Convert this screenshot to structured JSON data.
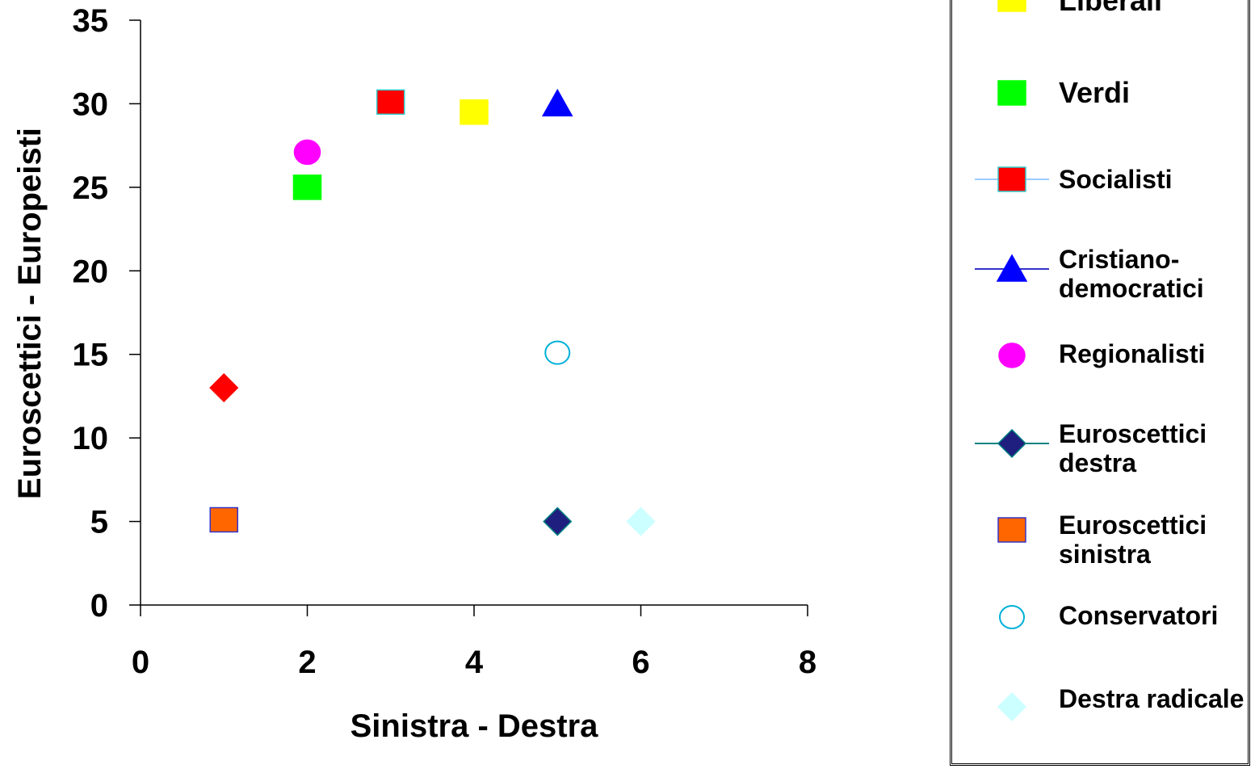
{
  "chart_data": {
    "type": "scatter",
    "title": "",
    "xlabel": "Sinistra - Destra",
    "ylabel": "Euroscettici - Europeisti",
    "xlim": [
      0,
      8
    ],
    "ylim": [
      0,
      35
    ],
    "xticks": [
      "0",
      "2",
      "4",
      "6",
      "8"
    ],
    "yticks": [
      "0",
      "5",
      "10",
      "15",
      "20",
      "25",
      "30",
      "35"
    ],
    "grid": false,
    "legend_position": "right",
    "series": [
      {
        "name": "",
        "marker": "diamond",
        "fill": "#ff0000",
        "stroke": "#ff0000",
        "points": [
          [
            1,
            13
          ]
        ]
      },
      {
        "name": "Liberali",
        "marker": "square",
        "fill": "#ffff00",
        "stroke": "#ffff00",
        "points": [
          [
            4,
            29.5
          ]
        ]
      },
      {
        "name": "Verdi",
        "marker": "square",
        "fill": "#00ff00",
        "stroke": "#00ff00",
        "points": [
          [
            2,
            25
          ]
        ]
      },
      {
        "name": "Socialisti",
        "marker": "square",
        "fill": "#ff0000",
        "stroke": "#33cccc",
        "points": [
          [
            3,
            30.1
          ]
        ]
      },
      {
        "name": "Cristiano-democratici",
        "marker": "triangle",
        "fill": "#0000ff",
        "stroke": "#0000ff",
        "points": [
          [
            5,
            30
          ]
        ]
      },
      {
        "name": "Regionalisti",
        "marker": "circle",
        "fill": "#ff00ff",
        "stroke": "#ff00ff",
        "points": [
          [
            2,
            27.1
          ]
        ]
      },
      {
        "name": "Euroscettici destra",
        "marker": "diamond",
        "fill": "#1f1f7f",
        "stroke": "#008080",
        "points": [
          [
            5,
            5
          ]
        ]
      },
      {
        "name": "Euroscettici sinistra",
        "marker": "square",
        "fill": "#ff6600",
        "stroke": "#3333cc",
        "points": [
          [
            1,
            5.1
          ]
        ]
      },
      {
        "name": "Conservatori",
        "marker": "open-circle",
        "fill": "#ffffff",
        "stroke": "#00b0d8",
        "points": [
          [
            5,
            15.1
          ]
        ]
      },
      {
        "name": "Destra radicale",
        "marker": "diamond",
        "fill": "#ccffff",
        "stroke": "#ccffff",
        "points": [
          [
            6,
            5
          ]
        ]
      }
    ]
  },
  "legend": {
    "items": [
      {
        "label": "Liberali",
        "marker": "square",
        "fill": "#ffff00",
        "stroke": "#ffff00",
        "line": false
      },
      {
        "label": "Verdi",
        "marker": "square",
        "fill": "#00ff00",
        "stroke": "#00ff00",
        "line": false
      },
      {
        "label": "Socialisti",
        "marker": "square",
        "fill": "#ff0000",
        "stroke": "#33cccc",
        "line": true,
        "line_color": "#99ccff"
      },
      {
        "label": "Cristiano-democratici",
        "marker": "triangle",
        "fill": "#0000ff",
        "stroke": "#0000ff",
        "line": true,
        "line_color": "#3333cc"
      },
      {
        "label": "Regionalisti",
        "marker": "circle",
        "fill": "#ff00ff",
        "stroke": "#ff00ff",
        "line": false
      },
      {
        "label": "Euroscettici destra",
        "marker": "diamond",
        "fill": "#1f1f7f",
        "stroke": "#008080",
        "line": true,
        "line_color": "#008080"
      },
      {
        "label": "Euroscettici sinistra",
        "marker": "square",
        "fill": "#ff6600",
        "stroke": "#3333cc",
        "line": false
      },
      {
        "label": "Conservatori",
        "marker": "open-circle",
        "fill": "#ffffff",
        "stroke": "#00b0d8",
        "line": false
      },
      {
        "label": "Destra radicale",
        "marker": "diamond",
        "fill": "#ccffff",
        "stroke": "#ccffff",
        "line": false
      }
    ]
  }
}
